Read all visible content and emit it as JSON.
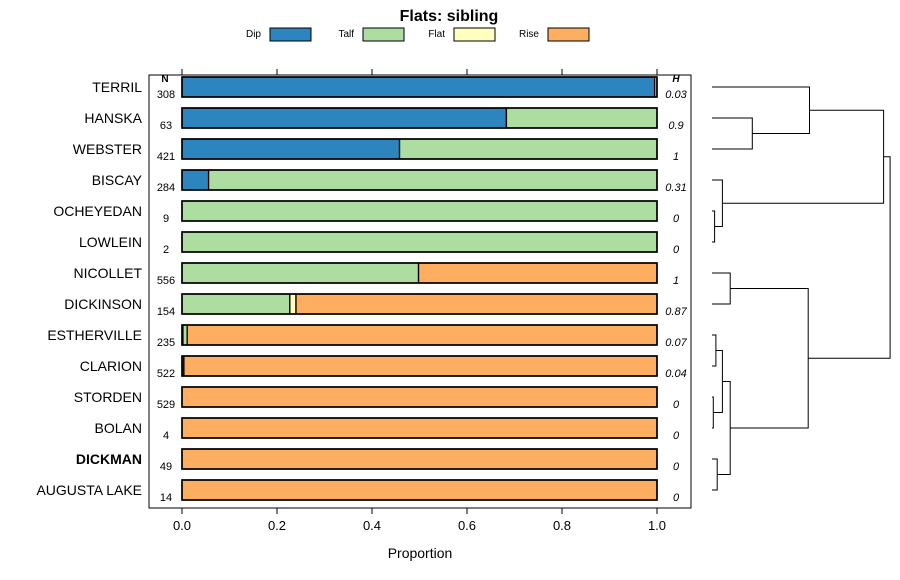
{
  "chart_data": {
    "type": "bar",
    "orientation": "horizontal",
    "stacked": true,
    "title": "Flats: sibling",
    "xlabel": "Proportion",
    "xlim": [
      0,
      1
    ],
    "xticks": [
      "0.0",
      "0.2",
      "0.4",
      "0.6",
      "0.8",
      "1.0"
    ],
    "n_header": "N",
    "h_header": "H",
    "legend": [
      {
        "name": "Dip",
        "color": "#2c85be"
      },
      {
        "name": "Talf",
        "color": "#addda1"
      },
      {
        "name": "Flat",
        "color": "#ffffbf"
      },
      {
        "name": "Rise",
        "color": "#fdae61"
      }
    ],
    "categories": [
      {
        "name": "TERRIL",
        "n": "308",
        "h": "0.03",
        "bold": false,
        "values": [
          0.995,
          0.005,
          0,
          0
        ]
      },
      {
        "name": "HANSKA",
        "n": "63",
        "h": "0.9",
        "bold": false,
        "values": [
          0.683,
          0.317,
          0,
          0
        ]
      },
      {
        "name": "WEBSTER",
        "n": "421",
        "h": "1",
        "bold": false,
        "values": [
          0.458,
          0.542,
          0,
          0
        ]
      },
      {
        "name": "BISCAY",
        "n": "284",
        "h": "0.31",
        "bold": false,
        "values": [
          0.056,
          0.944,
          0,
          0
        ]
      },
      {
        "name": "OCHEYEDAN",
        "n": "9",
        "h": "0",
        "bold": false,
        "values": [
          0,
          1,
          0,
          0
        ]
      },
      {
        "name": "LOWLEIN",
        "n": "2",
        "h": "0",
        "bold": false,
        "values": [
          0,
          1,
          0,
          0
        ]
      },
      {
        "name": "NICOLLET",
        "n": "556",
        "h": "1",
        "bold": false,
        "values": [
          0,
          0.498,
          0,
          0.502
        ]
      },
      {
        "name": "DICKINSON",
        "n": "154",
        "h": "0.87",
        "bold": false,
        "values": [
          0,
          0.227,
          0.013,
          0.76
        ]
      },
      {
        "name": "ESTHERVILLE",
        "n": "235",
        "h": "0.07",
        "bold": false,
        "values": [
          0.002,
          0.009,
          0,
          0.989
        ]
      },
      {
        "name": "CLARION",
        "n": "522",
        "h": "0.04",
        "bold": false,
        "values": [
          0.004,
          0,
          0,
          0.996
        ]
      },
      {
        "name": "STORDEN",
        "n": "529",
        "h": "0",
        "bold": false,
        "values": [
          0,
          0,
          0,
          1
        ]
      },
      {
        "name": "BOLAN",
        "n": "4",
        "h": "0",
        "bold": false,
        "values": [
          0,
          0,
          0,
          1
        ]
      },
      {
        "name": "DICKMAN",
        "n": "49",
        "h": "0",
        "bold": true,
        "values": [
          0,
          0,
          0,
          1
        ]
      },
      {
        "name": "AUGUSTA LAKE",
        "n": "14",
        "h": "0",
        "bold": false,
        "values": [
          0,
          0,
          0,
          1
        ]
      }
    ],
    "dendrogram": {
      "leaf_order": [
        "TERRIL",
        "HANSKA",
        "WEBSTER",
        "BISCAY",
        "OCHEYEDAN",
        "LOWLEIN",
        "NICOLLET",
        "DICKINSON",
        "ESTHERVILLE",
        "CLARION",
        "STORDEN",
        "BOLAN",
        "DICKMAN",
        "AUGUSTA LAKE"
      ],
      "merges": [
        {
          "a": "OCHEYEDAN",
          "b": "LOWLEIN",
          "height": 0.02
        },
        {
          "a": "STORDEN",
          "b": "BOLAN",
          "height": 0.01
        },
        {
          "a": "ESTHERVILLE",
          "b": "CLARION",
          "height": 0.03
        },
        {
          "a": "DICKMAN",
          "b": "AUGUSTA LAKE",
          "height": 0.04
        },
        {
          "a": [
            "ESTHERVILLE",
            "CLARION"
          ],
          "b": [
            "STORDEN",
            "BOLAN"
          ],
          "height": 0.08
        },
        {
          "a": "BISCAY",
          "b": [
            "OCHEYEDAN",
            "LOWLEIN"
          ],
          "height": 0.08
        },
        {
          "a": "HANSKA",
          "b": "WEBSTER",
          "height": 0.31
        },
        {
          "a": [
            [
              "ESTHERVILLE",
              "CLARION"
            ],
            [
              "STORDEN",
              "BOLAN"
            ]
          ],
          "b": [
            "DICKMAN",
            "AUGUSTA LAKE"
          ],
          "height": 0.14
        },
        {
          "a": "NICOLLET",
          "b": "DICKINSON",
          "height": 0.14
        },
        {
          "a": "TERRIL",
          "b": [
            "HANSKA",
            "WEBSTER"
          ],
          "height": 0.75
        },
        {
          "a": [
            "NICOLLET",
            "DICKINSON"
          ],
          "b": "cluster-rise",
          "height": 0.74
        },
        {
          "a": [
            "TERRIL",
            "HANSKA",
            "WEBSTER"
          ],
          "b": [
            "BISCAY",
            "OCHEYEDAN",
            "LOWLEIN"
          ],
          "height": 1.32
        },
        {
          "a": "cluster-dip-talf",
          "b": "cluster-talf-rise",
          "height": 1.37
        }
      ]
    }
  }
}
